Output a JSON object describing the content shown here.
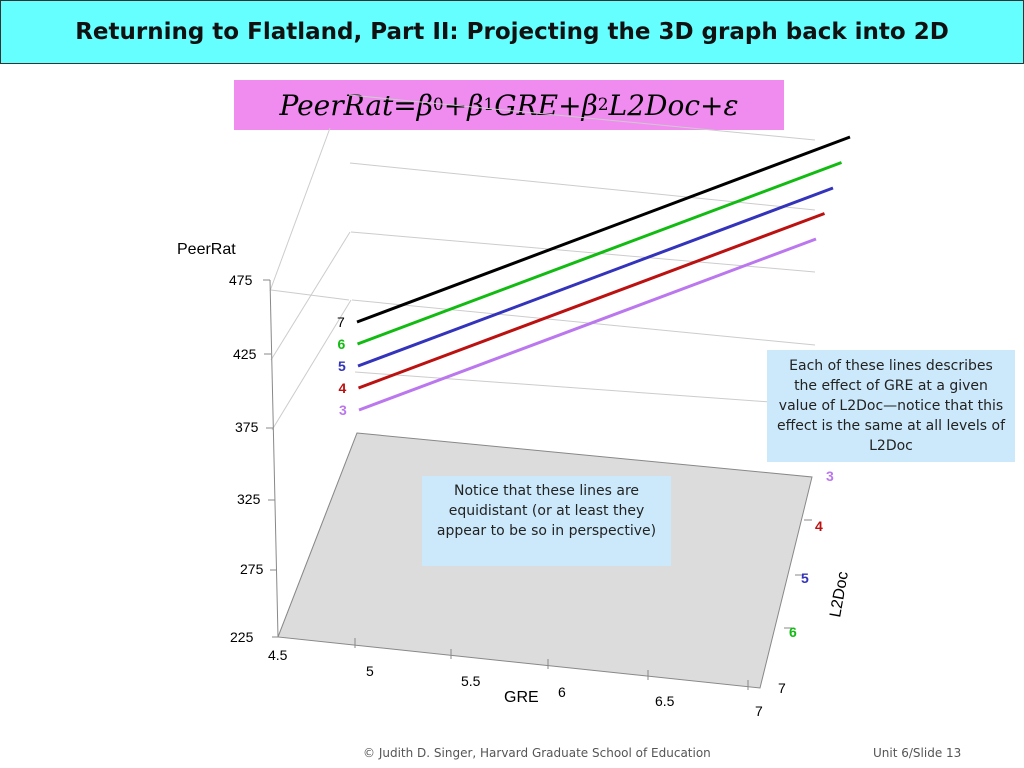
{
  "slide": {
    "title": "Returning to Flatland, Part II: Projecting the 3D graph back into 2D",
    "equation": {
      "lhs": "PeerRat",
      "eq": " = ",
      "b": "β",
      "s0": "0",
      "s1": "1",
      "s2": "2",
      "plus": " + ",
      "gre": "GRE",
      "l2doc": "L2Doc",
      "eps": "ε"
    },
    "callout_right": "Each of these lines describes the effect of GRE at a given value of L2Doc—notice that this effect is the same at all levels of L2Doc",
    "callout_mid": "Notice that these lines are equidistant (or at least they appear to be so in perspective)",
    "footer_left": "© Judith D. Singer, Harvard Graduate School of Education",
    "footer_right": "Unit 6/Slide 13"
  },
  "chart_data": {
    "type": "line",
    "title": "",
    "xlabel": "GRE",
    "ylabel": "PeerRat",
    "zlabel": "L2Doc",
    "x_ticks": [
      "4.5",
      "5",
      "5.5",
      "6",
      "6.5",
      "7"
    ],
    "y_ticks": [
      "225",
      "275",
      "325",
      "375",
      "425",
      "475"
    ],
    "z_ticks": [
      "3",
      "4",
      "5",
      "6",
      "7"
    ],
    "xlim": [
      4.5,
      7
    ],
    "ylim": [
      225,
      475
    ],
    "zlim": [
      3,
      7
    ],
    "series": [
      {
        "name": "7",
        "color": "#000000",
        "x": [
          4.5,
          7
        ]
      },
      {
        "name": "6",
        "color": "#11bb11",
        "x": [
          4.5,
          7
        ]
      },
      {
        "name": "5",
        "color": "#3333bb",
        "x": [
          4.5,
          7
        ]
      },
      {
        "name": "4",
        "color": "#bb1111",
        "x": [
          4.5,
          7
        ]
      },
      {
        "name": "3",
        "color": "#bb77ee",
        "x": [
          4.5,
          7
        ]
      }
    ],
    "floor_color": "#dcdcdc"
  }
}
